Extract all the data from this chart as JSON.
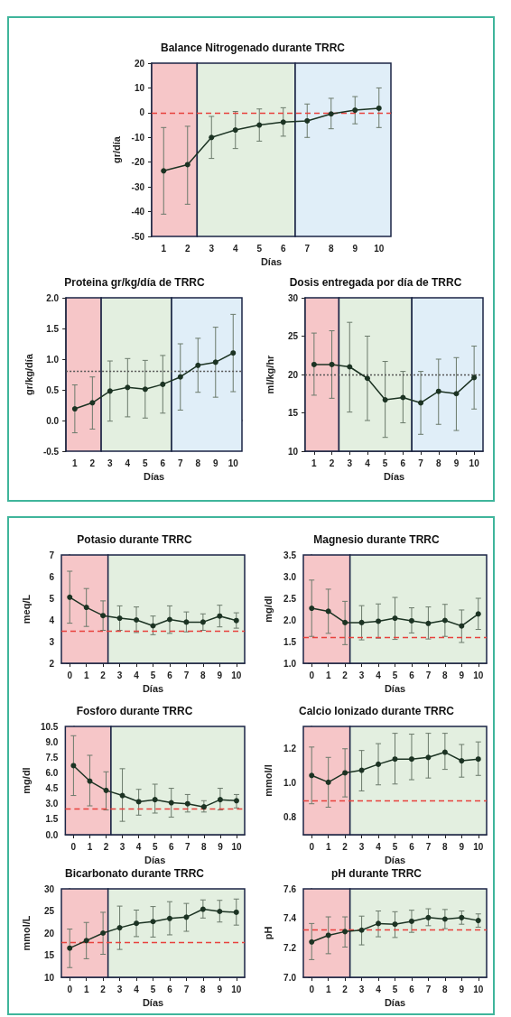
{
  "chart_data": [
    {
      "type": "line",
      "title": "Balance Nitrogenado durante TRRC",
      "xlabel": "Días",
      "ylabel": "gr/día",
      "x": [
        1,
        2,
        3,
        4,
        5,
        6,
        7,
        8,
        9,
        10
      ],
      "xlim": [
        0.5,
        10.5
      ],
      "xticks": [
        1,
        2,
        3,
        4,
        5,
        6,
        7,
        8,
        9,
        10
      ],
      "ylim": [
        -50,
        20
      ],
      "yticks": [
        -50,
        -40,
        -30,
        -20,
        -10,
        0,
        10,
        20
      ],
      "marker": "circle",
      "line_style": "solid",
      "color": "#1c3323",
      "values": [
        -23.5,
        -21,
        -10,
        -7,
        -5,
        -3.8,
        -3.3,
        -0.5,
        1,
        1.8
      ],
      "errors": [
        [
          -41,
          -6
        ],
        [
          -37,
          -5.5
        ],
        [
          -18.5,
          -1.5
        ],
        [
          -14.5,
          0.5
        ],
        [
          -11.5,
          1.5
        ],
        [
          -9.5,
          2
        ],
        [
          -10,
          3.5
        ],
        [
          -6.5,
          5.8
        ],
        [
          -4.5,
          6.5
        ],
        [
          -6,
          10
        ]
      ],
      "ref_lines": [
        {
          "axis": "y",
          "value": 0,
          "color": "#e8413c",
          "line_style": "dashed"
        }
      ],
      "bands": [
        {
          "axis": "x",
          "from": 0.5,
          "to": 2.4,
          "color": "#f6c6c8"
        },
        {
          "axis": "x",
          "from": 2.4,
          "to": 6.5,
          "color": "#e3efe0"
        },
        {
          "axis": "x",
          "from": 6.5,
          "to": 10.5,
          "color": "#e0eef8"
        }
      ]
    },
    {
      "type": "line",
      "title": "Proteina gr/kg/día de TRRC",
      "xlabel": "Días",
      "ylabel": "gr/kg/día",
      "x": [
        1,
        2,
        3,
        4,
        5,
        6,
        7,
        8,
        9,
        10
      ],
      "xlim": [
        0.5,
        10.5
      ],
      "xticks": [
        1,
        2,
        3,
        4,
        5,
        6,
        7,
        8,
        9,
        10
      ],
      "ylim": [
        -0.5,
        2
      ],
      "yticks": [
        -0.5,
        {
          "value": 0,
          "label": "0.0"
        },
        0.5,
        {
          "value": 1,
          "label": "1.0"
        },
        1.5,
        {
          "value": 2,
          "label": "2.0"
        }
      ],
      "marker": "circle",
      "line_style": "solid",
      "color": "#1c3323",
      "values": [
        0.19,
        0.29,
        0.48,
        0.54,
        0.51,
        0.59,
        0.71,
        0.9,
        0.95,
        1.1
      ],
      "errors": [
        [
          -0.2,
          0.58
        ],
        [
          -0.14,
          0.71
        ],
        [
          -0.01,
          0.97
        ],
        [
          0.06,
          1.01
        ],
        [
          0.04,
          0.98
        ],
        [
          0.12,
          1.06
        ],
        [
          0.17,
          1.25
        ],
        [
          0.46,
          1.34
        ],
        [
          0.38,
          1.52
        ],
        [
          0.47,
          1.73
        ]
      ],
      "ref_lines": [
        {
          "axis": "y",
          "value": 0.8,
          "color": "#555555",
          "line_style": "dotted"
        }
      ],
      "bands": [
        {
          "axis": "x",
          "from": 0.5,
          "to": 2.5,
          "color": "#f6c6c8"
        },
        {
          "axis": "x",
          "from": 2.5,
          "to": 6.5,
          "color": "#e3efe0"
        },
        {
          "axis": "x",
          "from": 6.5,
          "to": 10.5,
          "color": "#e0eef8"
        }
      ]
    },
    {
      "type": "line",
      "title": "Dosis entregada por día de TRRC",
      "xlabel": "Días",
      "ylabel": "ml/kg/hr",
      "x": [
        1,
        2,
        3,
        4,
        5,
        6,
        7,
        8,
        9,
        10
      ],
      "xlim": [
        0.5,
        10.5
      ],
      "xticks": [
        1,
        2,
        3,
        4,
        5,
        6,
        7,
        8,
        9,
        10
      ],
      "ylim": [
        10,
        30
      ],
      "yticks": [
        10,
        15,
        20,
        25,
        30
      ],
      "marker": "circle",
      "line_style": "solid",
      "color": "#1c3323",
      "values": [
        21.3,
        21.3,
        21,
        19.5,
        16.7,
        17,
        16.3,
        17.8,
        17.5,
        19.6
      ],
      "errors": [
        [
          17.3,
          25.4
        ],
        [
          16.9,
          25.7
        ],
        [
          15.1,
          26.8
        ],
        [
          14,
          25
        ],
        [
          11.8,
          21.7
        ],
        [
          13.7,
          20.4
        ],
        [
          12.2,
          20.4
        ],
        [
          13.5,
          22
        ],
        [
          12.7,
          22.2
        ],
        [
          15.5,
          23.7
        ]
      ],
      "ref_lines": [
        {
          "axis": "y",
          "value": 20,
          "color": "#555555",
          "line_style": "dotted"
        }
      ],
      "bands": [
        {
          "axis": "x",
          "from": 0.5,
          "to": 2.4,
          "color": "#f6c6c8"
        },
        {
          "axis": "x",
          "from": 2.4,
          "to": 6.5,
          "color": "#e3efe0"
        },
        {
          "axis": "x",
          "from": 6.5,
          "to": 10.5,
          "color": "#e0eef8"
        }
      ]
    },
    {
      "type": "line",
      "title": "Potasio durante TRRC",
      "xlabel": "Días",
      "ylabel": "meq/L",
      "x": [
        0,
        1,
        2,
        3,
        4,
        5,
        6,
        7,
        8,
        9,
        10
      ],
      "xlim": [
        -0.5,
        10.5
      ],
      "xticks": [
        0,
        1,
        2,
        3,
        4,
        5,
        6,
        7,
        8,
        9,
        10
      ],
      "ylim": [
        2,
        7
      ],
      "yticks": [
        2,
        3,
        4,
        5,
        6,
        7
      ],
      "marker": "circle",
      "line_style": "solid",
      "color": "#1c3323",
      "values": [
        5.05,
        4.58,
        4.2,
        4.08,
        4,
        3.73,
        4.02,
        3.9,
        3.9,
        4.18,
        3.97
      ],
      "errors": [
        [
          3.85,
          6.25
        ],
        [
          3.7,
          5.45
        ],
        [
          3.52,
          4.88
        ],
        [
          3.52,
          4.65
        ],
        [
          3.42,
          4.6
        ],
        [
          3.32,
          4.18
        ],
        [
          3.38,
          4.65
        ],
        [
          3.45,
          4.37
        ],
        [
          3.52,
          4.28
        ],
        [
          3.68,
          4.68
        ],
        [
          3.62,
          4.33
        ]
      ],
      "ref_lines": [
        {
          "axis": "y",
          "value": 3.5,
          "color": "#e8413c",
          "line_style": "dashed"
        }
      ],
      "bands": [
        {
          "axis": "x",
          "from": -0.5,
          "to": 2.3,
          "color": "#f6c6c8"
        },
        {
          "axis": "x",
          "from": 2.3,
          "to": 10.5,
          "color": "#e3efe0"
        }
      ]
    },
    {
      "type": "line",
      "title": "Magnesio durante TRRC",
      "xlabel": "Días",
      "ylabel": "mg/dl",
      "x": [
        0,
        1,
        2,
        3,
        4,
        5,
        6,
        7,
        8,
        9,
        10
      ],
      "xlim": [
        -0.5,
        10.5
      ],
      "xticks": [
        0,
        1,
        2,
        3,
        4,
        5,
        6,
        7,
        8,
        9,
        10
      ],
      "ylim": [
        1,
        3.5
      ],
      "yticks": [
        {
          "value": 1,
          "label": "1.0"
        },
        1.5,
        {
          "value": 2,
          "label": "2.0"
        },
        2.5,
        {
          "value": 3,
          "label": "3.0"
        },
        3.5
      ],
      "marker": "circle",
      "line_style": "solid",
      "color": "#1c3323",
      "values": [
        2.27,
        2.2,
        1.94,
        1.94,
        1.97,
        2.04,
        1.98,
        1.92,
        1.99,
        1.86,
        2.14
      ],
      "errors": [
        [
          1.62,
          2.92
        ],
        [
          1.69,
          2.71
        ],
        [
          1.43,
          2.43
        ],
        [
          1.54,
          2.33
        ],
        [
          1.58,
          2.37
        ],
        [
          1.55,
          2.52
        ],
        [
          1.7,
          2.28
        ],
        [
          1.56,
          2.3
        ],
        [
          1.62,
          2.36
        ],
        [
          1.48,
          2.23
        ],
        [
          1.78,
          2.5
        ]
      ],
      "ref_lines": [
        {
          "axis": "y",
          "value": 1.6,
          "color": "#e8413c",
          "line_style": "dashed"
        }
      ],
      "bands": [
        {
          "axis": "x",
          "from": -0.5,
          "to": 2.3,
          "color": "#f6c6c8"
        },
        {
          "axis": "x",
          "from": 2.3,
          "to": 10.5,
          "color": "#e3efe0"
        }
      ]
    },
    {
      "type": "line",
      "title": "Fosforo durante TRRC",
      "xlabel": "Días",
      "ylabel": "mg/dl",
      "x": [
        0,
        1,
        2,
        3,
        4,
        5,
        6,
        7,
        8,
        9,
        10
      ],
      "xlim": [
        -0.5,
        10.5
      ],
      "xticks": [
        0,
        1,
        2,
        3,
        4,
        5,
        6,
        7,
        8,
        9,
        10
      ],
      "ylim": [
        0,
        10.5
      ],
      "yticks": [
        {
          "value": 0,
          "label": "0.0"
        },
        1.5,
        {
          "value": 3,
          "label": "3.0"
        },
        4.5,
        {
          "value": 6,
          "label": "6.0"
        },
        7.5,
        {
          "value": 9,
          "label": "9.0"
        },
        10.5
      ],
      "marker": "circle",
      "line_style": "solid",
      "color": "#1c3323",
      "values": [
        6.7,
        5.2,
        4.3,
        3.8,
        3.2,
        3.4,
        3.1,
        3,
        2.7,
        3.4,
        3.3
      ],
      "errors": [
        [
          3.8,
          9.6
        ],
        [
          2.8,
          7.7
        ],
        [
          2.4,
          6.1
        ],
        [
          1.3,
          6.4
        ],
        [
          1.9,
          4.4
        ],
        [
          2.1,
          4.9
        ],
        [
          1.7,
          4.5
        ],
        [
          2.2,
          3.9
        ],
        [
          2.2,
          3.3
        ],
        [
          2.4,
          4.5
        ],
        [
          2.6,
          3.9
        ]
      ],
      "ref_lines": [
        {
          "axis": "y",
          "value": 2.5,
          "color": "#e8413c",
          "line_style": "dashed"
        }
      ],
      "bands": [
        {
          "axis": "x",
          "from": -0.5,
          "to": 2.3,
          "color": "#f6c6c8"
        },
        {
          "axis": "x",
          "from": 2.3,
          "to": 10.5,
          "color": "#e3efe0"
        }
      ]
    },
    {
      "type": "line",
      "title": "Calcio Ionizado durante TRRC",
      "xlabel": "Días",
      "ylabel": "mmol/l",
      "x": [
        0,
        1,
        2,
        3,
        4,
        5,
        6,
        7,
        8,
        9,
        10
      ],
      "xlim": [
        -0.5,
        10.5
      ],
      "xticks": [
        0,
        1,
        2,
        3,
        4,
        5,
        6,
        7,
        8,
        9,
        10
      ],
      "ylim": [
        0.7,
        1.33
      ],
      "yticks": [
        0.8,
        {
          "value": 0.9,
          "label": null
        },
        {
          "value": 1,
          "label": "1.0"
        },
        {
          "value": 1.1,
          "label": null
        },
        1.2,
        {
          "value": 1.3,
          "label": null
        }
      ],
      "marker": "circle",
      "line_style": "solid",
      "color": "#1c3323",
      "values": [
        1.045,
        1.005,
        1.06,
        1.075,
        1.11,
        1.14,
        1.14,
        1.15,
        1.18,
        1.13,
        1.14
      ],
      "errors": [
        [
          0.88,
          1.21
        ],
        [
          0.86,
          1.15
        ],
        [
          0.92,
          1.2
        ],
        [
          0.955,
          1.19
        ],
        [
          0.99,
          1.23
        ],
        [
          0.995,
          1.29
        ],
        [
          1.02,
          1.285
        ],
        [
          1.03,
          1.29
        ],
        [
          1.08,
          1.29
        ],
        [
          1.035,
          1.225
        ],
        [
          1.045,
          1.24
        ]
      ],
      "ref_lines": [
        {
          "axis": "y",
          "value": 0.9,
          "color": "#e8413c",
          "line_style": "dashed"
        }
      ],
      "bands": [
        {
          "axis": "x",
          "from": -0.5,
          "to": 2.3,
          "color": "#f6c6c8"
        },
        {
          "axis": "x",
          "from": 2.3,
          "to": 10.5,
          "color": "#e3efe0"
        }
      ]
    },
    {
      "type": "line",
      "title": "Bicarbonato durante TRRC",
      "xlabel": "Días",
      "ylabel": "mmol/L",
      "x": [
        0,
        1,
        2,
        3,
        4,
        5,
        6,
        7,
        8,
        9,
        10
      ],
      "xlim": [
        -0.5,
        10.5
      ],
      "xticks": [
        0,
        1,
        2,
        3,
        4,
        5,
        6,
        7,
        8,
        9,
        10
      ],
      "ylim": [
        10,
        30
      ],
      "yticks": [
        10,
        15,
        20,
        25,
        30
      ],
      "marker": "circle",
      "line_style": "solid",
      "color": "#1c3323",
      "values": [
        16.6,
        18.3,
        20,
        21.2,
        22.2,
        22.6,
        23.3,
        23.6,
        25.4,
        24.9,
        24.7
      ],
      "errors": [
        [
          12.2,
          20.9
        ],
        [
          14.2,
          22.4
        ],
        [
          15.2,
          24.7
        ],
        [
          16.3,
          26.1
        ],
        [
          19.2,
          25.2
        ],
        [
          19.1,
          26
        ],
        [
          19.6,
          27.1
        ],
        [
          20.4,
          26.7
        ],
        [
          23.4,
          27.5
        ],
        [
          22.5,
          27.4
        ],
        [
          21.8,
          27.7
        ]
      ],
      "ref_lines": [
        {
          "axis": "y",
          "value": 18,
          "color": "#e8413c",
          "line_style": "dashed"
        }
      ],
      "bands": [
        {
          "axis": "x",
          "from": -0.5,
          "to": 2.3,
          "color": "#f6c6c8"
        },
        {
          "axis": "x",
          "from": 2.3,
          "to": 10.5,
          "color": "#e3efe0"
        }
      ]
    },
    {
      "type": "line",
      "title": "pH durante TRRC",
      "xlabel": "Días",
      "ylabel": "pH",
      "x": [
        0,
        1,
        2,
        3,
        4,
        5,
        6,
        7,
        8,
        9,
        10
      ],
      "xlim": [
        -0.5,
        10.5
      ],
      "xticks": [
        0,
        1,
        2,
        3,
        4,
        5,
        6,
        7,
        8,
        9,
        10
      ],
      "ylim": [
        7,
        7.6
      ],
      "yticks": [
        {
          "value": 7,
          "label": "7.0"
        },
        {
          "value": 7.1,
          "label": null
        },
        7.2,
        {
          "value": 7.3,
          "label": null
        },
        7.4,
        {
          "value": 7.5,
          "label": null
        },
        7.6
      ],
      "marker": "circle",
      "line_style": "solid",
      "color": "#1c3323",
      "values": [
        7.24,
        7.285,
        7.31,
        7.32,
        7.365,
        7.36,
        7.38,
        7.405,
        7.395,
        7.405,
        7.385
      ],
      "errors": [
        [
          7.12,
          7.365
        ],
        [
          7.16,
          7.41
        ],
        [
          7.205,
          7.41
        ],
        [
          7.22,
          7.415
        ],
        [
          7.275,
          7.45
        ],
        [
          7.27,
          7.445
        ],
        [
          7.305,
          7.455
        ],
        [
          7.35,
          7.465
        ],
        [
          7.33,
          7.46
        ],
        [
          7.36,
          7.45
        ],
        [
          7.34,
          7.43
        ]
      ],
      "ref_lines": [
        {
          "axis": "y",
          "value": 7.32,
          "color": "#e8413c",
          "line_style": "dashed"
        }
      ],
      "bands": [
        {
          "axis": "x",
          "from": -0.5,
          "to": 2.3,
          "color": "#f6c6c8"
        },
        {
          "axis": "x",
          "from": 2.3,
          "to": 10.5,
          "color": "#e3efe0"
        }
      ]
    }
  ]
}
